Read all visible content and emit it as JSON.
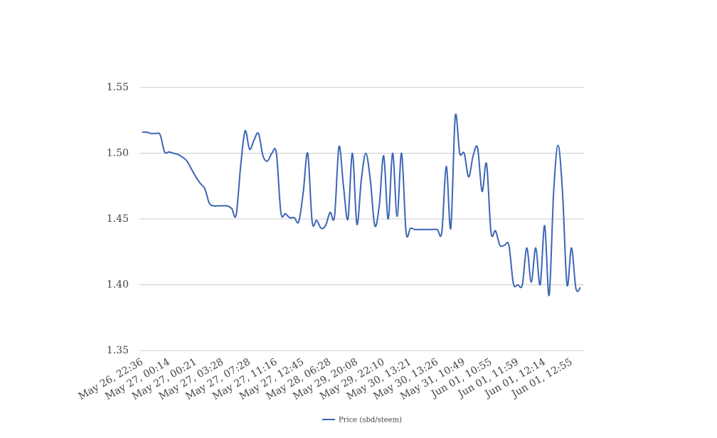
{
  "chart_data": {
    "type": "line",
    "categories": [
      "May 26, 22:36",
      null,
      null,
      null,
      null,
      null,
      "May 27, 00:14",
      null,
      null,
      null,
      null,
      null,
      "May 27, 00:21",
      null,
      null,
      null,
      null,
      null,
      "May 27, 03:28",
      null,
      null,
      null,
      null,
      null,
      "May 27, 07:28",
      null,
      null,
      null,
      null,
      null,
      "May 27, 11:16",
      null,
      null,
      null,
      null,
      null,
      "May 27, 12:45",
      null,
      null,
      null,
      null,
      null,
      "May 28, 06:28",
      null,
      null,
      null,
      null,
      null,
      "May 29, 20:08",
      null,
      null,
      null,
      null,
      null,
      "May 29, 22:10",
      null,
      null,
      null,
      null,
      null,
      "May 30, 13:21",
      null,
      null,
      null,
      null,
      null,
      "May 30, 13:26",
      null,
      null,
      null,
      null,
      null,
      "May 31, 10:49",
      null,
      null,
      null,
      null,
      null,
      "Jun 01, 10:55",
      null,
      null,
      null,
      null,
      null,
      "Jun 01, 11:59",
      null,
      null,
      null,
      null,
      null,
      "Jun 01, 12:14",
      null,
      null,
      null,
      null,
      null,
      "Jun 01, 12:55",
      null,
      null
    ],
    "series": [
      {
        "name": "Price (sbd/steem)",
        "color": "#3b66b5",
        "values": [
          1.516,
          1.516,
          1.515,
          1.515,
          1.514,
          1.501,
          1.501,
          1.5,
          1.499,
          1.497,
          1.494,
          1.488,
          1.482,
          1.477,
          1.473,
          1.462,
          1.46,
          1.46,
          1.46,
          1.46,
          1.458,
          1.453,
          1.49,
          1.517,
          1.503,
          1.51,
          1.515,
          1.498,
          1.494,
          1.5,
          1.5,
          1.455,
          1.454,
          1.451,
          1.451,
          1.448,
          1.47,
          1.5,
          1.448,
          1.449,
          1.443,
          1.445,
          1.455,
          1.452,
          1.505,
          1.475,
          1.45,
          1.5,
          1.446,
          1.48,
          1.5,
          1.48,
          1.445,
          1.46,
          1.498,
          1.45,
          1.5,
          1.452,
          1.5,
          1.44,
          1.443,
          1.442,
          1.442,
          1.442,
          1.442,
          1.442,
          1.442,
          1.44,
          1.49,
          1.443,
          1.528,
          1.5,
          1.5,
          1.482,
          1.498,
          1.504,
          1.471,
          1.492,
          1.44,
          1.441,
          1.43,
          1.43,
          1.43,
          1.401,
          1.4,
          1.4,
          1.428,
          1.402,
          1.428,
          1.4,
          1.445,
          1.392,
          1.47,
          1.506,
          1.47,
          1.4,
          1.428,
          1.397,
          1.398
        ]
      }
    ],
    "ylim": [
      1.35,
      1.55
    ],
    "yticks": [
      1.35,
      {
        "value": 1.4,
        "label": "1.40"
      },
      1.45,
      {
        "value": 1.5,
        "label": "1.50"
      },
      1.55
    ],
    "grid": true,
    "legend": "bottom"
  }
}
